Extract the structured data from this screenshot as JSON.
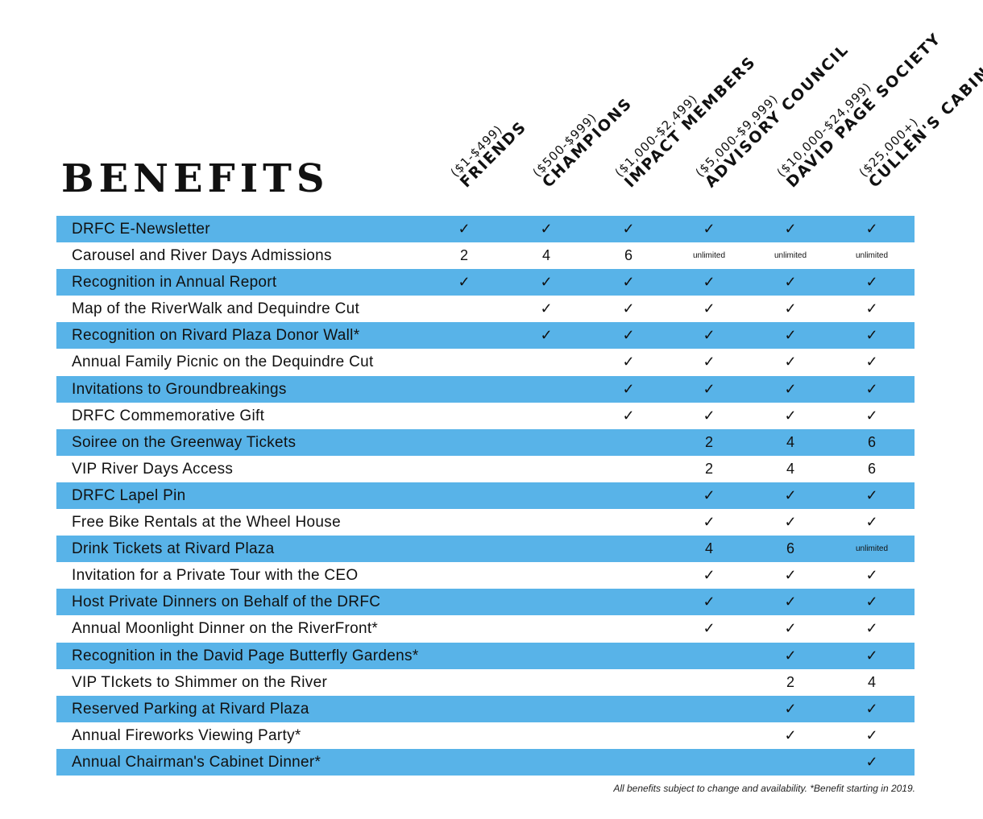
{
  "title": "BENEFITS",
  "columns": [
    {
      "range": "($1-$499)",
      "name": "FRIENDS"
    },
    {
      "range": "($500-$999)",
      "name": "CHAMPIONS"
    },
    {
      "range": "($1,000-$2,499)",
      "name": "IMPACT MEMBERS"
    },
    {
      "range": "($5,000-$9,999)",
      "name": "ADVISORY COUNCIL"
    },
    {
      "range": "($10,000-$24,999)",
      "name": "DAVID PAGE SOCIETY"
    },
    {
      "range": "($25,000+)",
      "name": "CULLEN'S CABINET"
    }
  ],
  "rows": [
    {
      "label": "DRFC E-Newsletter",
      "values": [
        "✓",
        "✓",
        "✓",
        "✓",
        "✓",
        "✓"
      ]
    },
    {
      "label": "Carousel and River Days Admissions",
      "values": [
        "2",
        "4",
        "6",
        "unlimited",
        "unlimited",
        "unlimited"
      ]
    },
    {
      "label": "Recognition in Annual Report",
      "values": [
        "✓",
        "✓",
        "✓",
        "✓",
        "✓",
        "✓"
      ]
    },
    {
      "label": "Map of the RiverWalk and Dequindre Cut",
      "values": [
        "",
        "✓",
        "✓",
        "✓",
        "✓",
        "✓"
      ]
    },
    {
      "label": "Recognition on Rivard Plaza Donor Wall*",
      "values": [
        "",
        "✓",
        "✓",
        "✓",
        "✓",
        "✓"
      ]
    },
    {
      "label": "Annual Family Picnic on the Dequindre Cut",
      "values": [
        "",
        "",
        "✓",
        "✓",
        "✓",
        "✓"
      ]
    },
    {
      "label": "Invitations to Groundbreakings",
      "values": [
        "",
        "",
        "✓",
        "✓",
        "✓",
        "✓"
      ]
    },
    {
      "label": "DRFC Commemorative Gift",
      "values": [
        "",
        "",
        "✓",
        "✓",
        "✓",
        "✓"
      ]
    },
    {
      "label": "Soiree on the Greenway Tickets",
      "values": [
        "",
        "",
        "",
        "2",
        "4",
        "6"
      ]
    },
    {
      "label": "VIP River Days Access",
      "values": [
        "",
        "",
        "",
        "2",
        "4",
        "6"
      ]
    },
    {
      "label": "DRFC Lapel Pin",
      "values": [
        "",
        "",
        "",
        "✓",
        "✓",
        "✓"
      ]
    },
    {
      "label": "Free Bike Rentals at the Wheel House",
      "values": [
        "",
        "",
        "",
        "✓",
        "✓",
        "✓"
      ]
    },
    {
      "label": "Drink Tickets at Rivard Plaza",
      "values": [
        "",
        "",
        "",
        "4",
        "6",
        "unlimited"
      ]
    },
    {
      "label": "Invitation for a Private Tour with the CEO",
      "values": [
        "",
        "",
        "",
        "✓",
        "✓",
        "✓"
      ]
    },
    {
      "label": "Host Private Dinners on Behalf of the DRFC",
      "values": [
        "",
        "",
        "",
        "✓",
        "✓",
        "✓"
      ]
    },
    {
      "label": "Annual Moonlight Dinner on the RiverFront*",
      "values": [
        "",
        "",
        "",
        "✓",
        "✓",
        "✓"
      ]
    },
    {
      "label": "Recognition in the David Page Butterfly Gardens*",
      "values": [
        "",
        "",
        "",
        "",
        "✓",
        "✓"
      ]
    },
    {
      "label": "VIP TIckets to Shimmer on the River",
      "values": [
        "",
        "",
        "",
        "",
        "2",
        "4"
      ]
    },
    {
      "label": "Reserved Parking at Rivard Plaza",
      "values": [
        "",
        "",
        "",
        "",
        "✓",
        "✓"
      ]
    },
    {
      "label": "Annual Fireworks Viewing Party*",
      "values": [
        "",
        "",
        "",
        "",
        "✓",
        "✓"
      ]
    },
    {
      "label": "Annual Chairman's Cabinet Dinner*",
      "values": [
        "",
        "",
        "",
        "",
        "",
        "✓"
      ]
    }
  ],
  "footnote": "All benefits subject to change and availability. *Benefit starting in 2019.",
  "colors": {
    "row_shade": "#58b3e8",
    "text": "#111111"
  }
}
